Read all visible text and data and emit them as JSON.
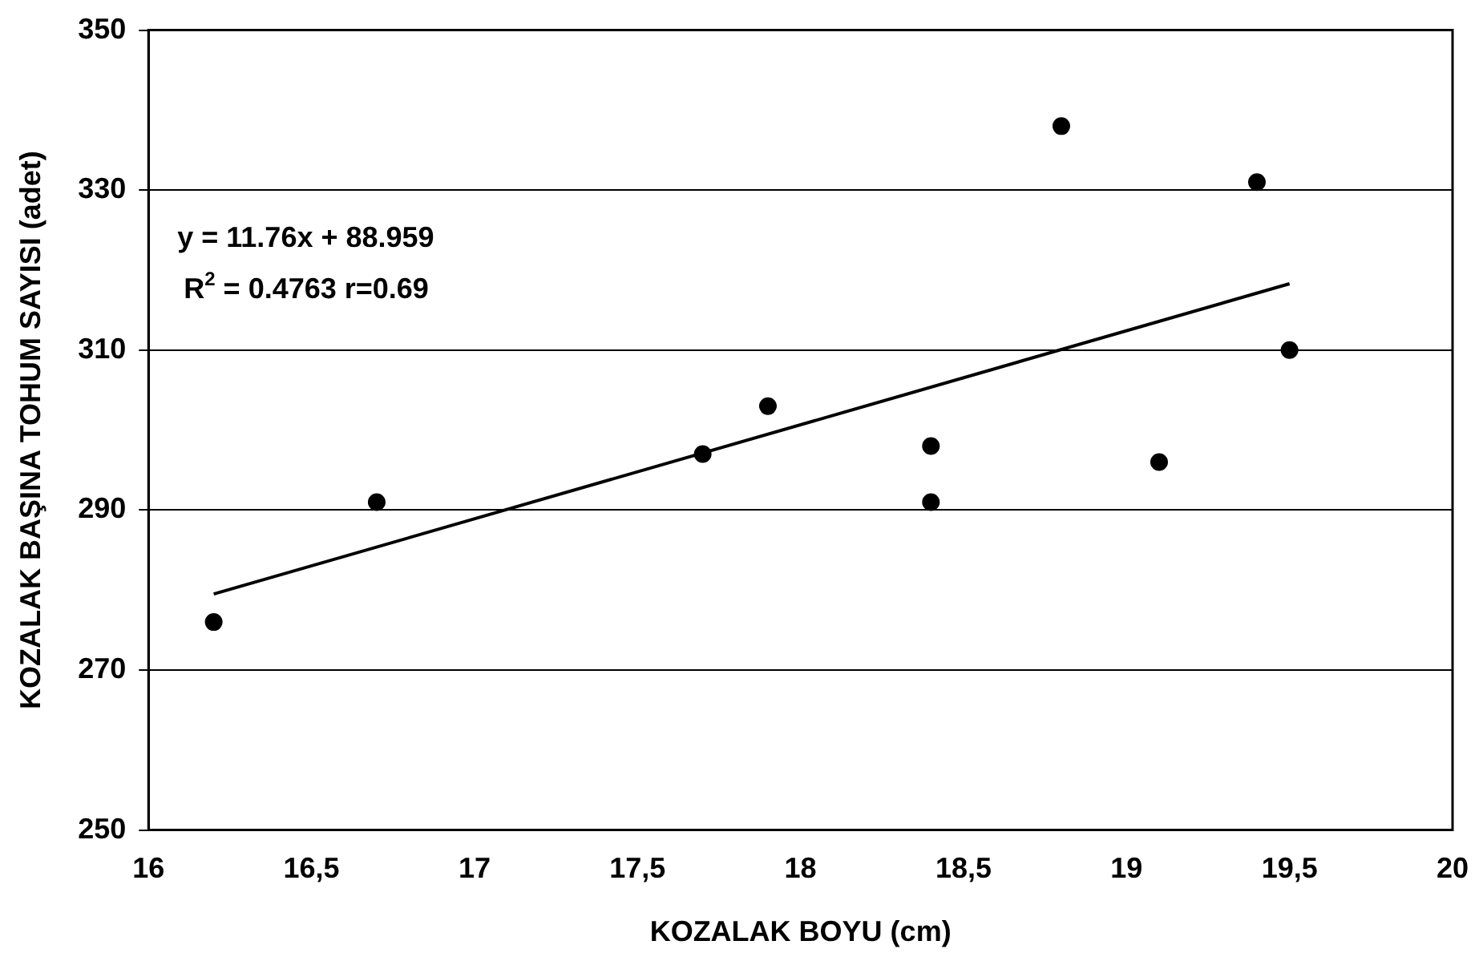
{
  "chart_data": {
    "type": "scatter",
    "xlabel": "KOZALAK BOYU (cm)",
    "ylabel": "KOZALAK BAŞINA TOHUM SAYISI (adet)",
    "x": [
      16.2,
      16.7,
      17.7,
      17.9,
      18.4,
      18.4,
      18.8,
      19.1,
      19.4,
      19.5
    ],
    "series": [
      {
        "color": "#000000",
        "values": [
          276,
          291,
          297,
          303,
          298,
          291,
          338,
          296,
          331,
          310
        ],
        "marker": "circle"
      },
      {
        "type": "line",
        "color": "#000000",
        "x": [
          16.2,
          19.5
        ],
        "values": [
          279.5,
          318.3
        ],
        "marker": "none"
      }
    ],
    "xlim": [
      16,
      20
    ],
    "xticks": [
      16,
      {
        "value": 16.5,
        "label": "16,5"
      },
      17,
      {
        "value": 17.5,
        "label": "17,5"
      },
      18,
      {
        "value": 18.5,
        "label": "18,5"
      },
      19,
      {
        "value": 19.5,
        "label": "19,5"
      },
      20
    ],
    "ylim": [
      250,
      350
    ],
    "yticks": [
      250,
      270,
      290,
      310,
      330,
      350
    ],
    "grid": "y",
    "legend": false,
    "annotations": [
      "y = 11.76x + 88.959",
      "R$^{2}$ = 0.4763 r=0.69"
    ]
  }
}
